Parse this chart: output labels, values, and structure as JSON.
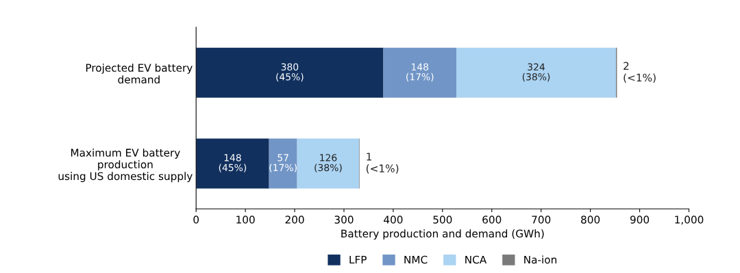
{
  "chart_data": {
    "type": "bar",
    "orientation": "horizontal",
    "stacked": true,
    "categories": [
      "Projected EV battery\ndemand",
      "Maximum EV battery\nproduction\nusing US domestic supply"
    ],
    "series": [
      {
        "name": "LFP",
        "color": "#11305e",
        "values": [
          380,
          148
        ],
        "value_labels": [
          "380\n(45%)",
          "148\n(45%)"
        ]
      },
      {
        "name": "NMC",
        "color": "#7195c6",
        "values": [
          148,
          57
        ],
        "value_labels": [
          "148\n(17%)",
          "57\n(17%)"
        ]
      },
      {
        "name": "NCA",
        "color": "#abd3f2",
        "values": [
          324,
          126
        ],
        "value_labels": [
          "324\n(38%)",
          "126\n(38%)"
        ]
      },
      {
        "name": "Na-ion",
        "color": "#7a7a7a",
        "values": [
          2,
          1
        ],
        "value_labels": [
          "2\n(<1%)",
          "1\n(<1%)"
        ]
      }
    ],
    "xlabel": "Battery production and demand (GWh)",
    "xlim": [
      0,
      1000
    ],
    "xticks": [
      0,
      100,
      200,
      300,
      400,
      500,
      600,
      700,
      800,
      900,
      {
        "value": 1000,
        "label": "1,000"
      }
    ],
    "grid": false,
    "legend": "bottom"
  }
}
